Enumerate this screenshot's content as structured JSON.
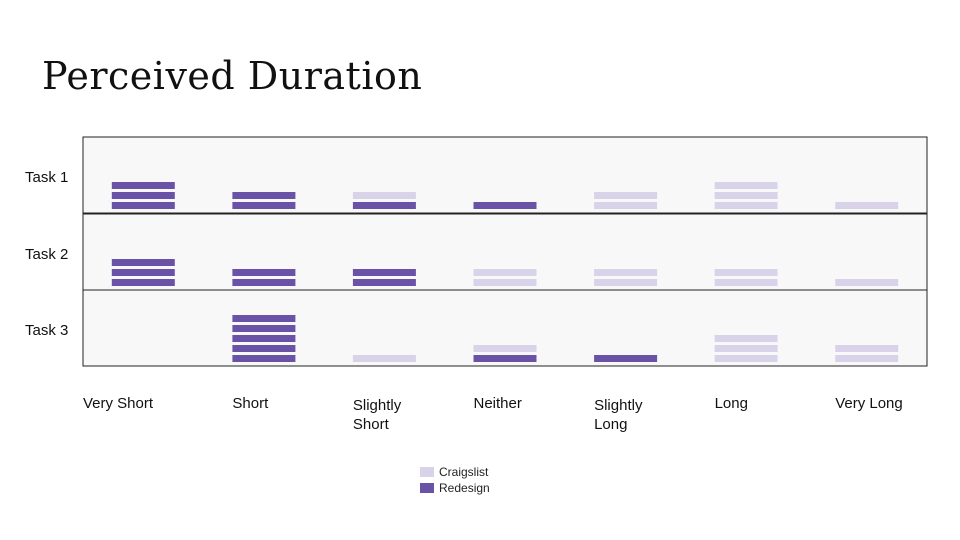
{
  "title": "Perceived Duration",
  "colors": {
    "craigslist": "#d9d3ea",
    "redesign": "#6a52a6",
    "panel_bg": "#f8f8f8",
    "border": "#222222"
  },
  "chart_data": {
    "type": "bar",
    "title": "Perceived Duration",
    "categories": [
      "Very Short",
      "Short",
      "Slightly\nShort",
      "Neither",
      "Slightly\nLong",
      "Long",
      "Very Long"
    ],
    "rows": [
      "Task 1",
      "Task 2",
      "Task 3"
    ],
    "series": [
      {
        "name": "Craigslist",
        "values": [
          [
            0,
            0,
            1,
            0,
            2,
            3,
            1
          ],
          [
            0,
            0,
            0,
            2,
            2,
            2,
            1
          ],
          [
            0,
            0,
            1,
            1,
            0,
            3,
            2
          ]
        ]
      },
      {
        "name": "Redesign",
        "values": [
          [
            3,
            2,
            1,
            1,
            0,
            0,
            0
          ],
          [
            3,
            2,
            2,
            0,
            0,
            0,
            0
          ],
          [
            0,
            5,
            0,
            1,
            1,
            0,
            0
          ]
        ]
      }
    ],
    "legend": {
      "position": "bottom",
      "entries": [
        "Craigslist",
        "Redesign"
      ]
    },
    "grid": false
  }
}
